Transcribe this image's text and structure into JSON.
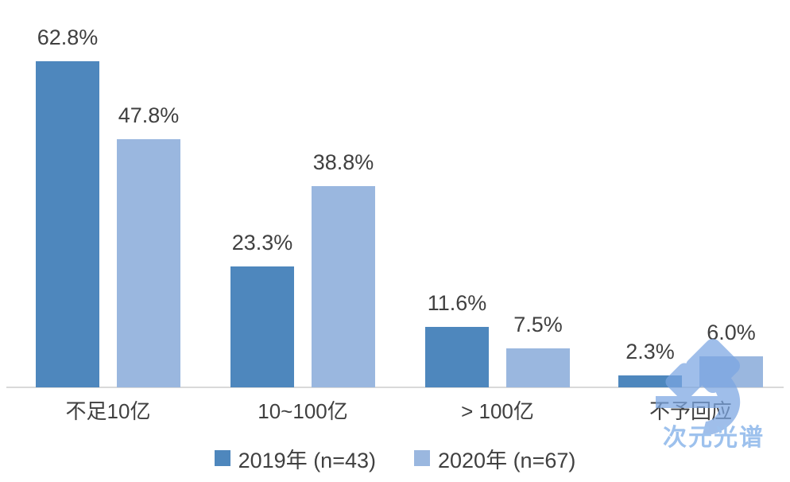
{
  "chart_data": {
    "type": "bar",
    "title": "",
    "xlabel": "",
    "ylabel": "",
    "categories": [
      "不足10亿",
      "10~100亿",
      "> 100亿",
      "不予回应"
    ],
    "series": [
      {
        "name": "2019年 (n=43)",
        "color": "#4E87BD",
        "values": [
          62.8,
          23.3,
          11.6,
          2.3
        ]
      },
      {
        "name": "2020年 (n=67)",
        "color": "#9AB7DF",
        "values": [
          47.8,
          38.8,
          7.5,
          6.0
        ]
      }
    ],
    "value_suffix": "%",
    "ylim": [
      0,
      70
    ],
    "grid": false,
    "legend_position": "bottom",
    "axis_line_color": "#D9D9D9",
    "label_color": "#404040",
    "background": "#FFFFFF"
  },
  "watermark": {
    "text": "次元光谱",
    "text_color": "#9DC1ED",
    "logo_color": "#7BA6E2"
  }
}
